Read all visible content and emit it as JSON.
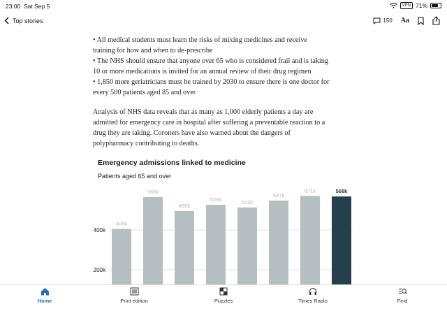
{
  "status_bar": {
    "time": "23:00",
    "date": "Sat Sep 5",
    "vpn": "VPN",
    "battery": "71%",
    "battery_level": 0.71
  },
  "nav": {
    "back_label": "Top stories",
    "comment_count": "150",
    "font_label": "Aa"
  },
  "article": {
    "bullets": [
      "• All medical students must learn the risks of mixing medicines and receive",
      "training for how and when to de-prescribe",
      "• The NHS should ensure that anyone over 65 who is considered frail and is taking",
      "10 or more medications is invited for an annual review of their drug regimen",
      "• 1,850 more geriatricians must be trained by 2030 to ensure there is one doctor for",
      "every 500 patients aged 85 and over"
    ],
    "paragraph_lines": [
      "Analysis of NHS data reveals that as many as 1,000 elderly patients a day are",
      "admitted for emergency care in hospital after suffering a preventable reaction to a",
      "drug they are taking. Coroners have also warned about the dangers of",
      "polypharmacy contributing to deaths."
    ]
  },
  "chart_data": {
    "type": "bar",
    "title": "Emergency admissions linked to medicine",
    "subtitle": "Patients aged 65 and over",
    "values": [
      405,
      565,
      495,
      526,
      513,
      547,
      571,
      568
    ],
    "value_labels": [
      "405k",
      "565k",
      "495k",
      "526k",
      "513k",
      "547k",
      "571k",
      "568k"
    ],
    "highlight_index": 7,
    "y_ticks": [
      200,
      400
    ],
    "y_tick_labels": [
      "200k",
      "400k"
    ],
    "colors": {
      "bar": "#b6bec2",
      "highlight": "#263f4c",
      "label": "#b0b6ba",
      "highlight_label": "#333333"
    }
  },
  "tabs": [
    {
      "label": "Home",
      "icon": "home-icon",
      "active": true
    },
    {
      "label": "Print edition",
      "icon": "newspaper-icon",
      "active": false
    },
    {
      "label": "Puzzles",
      "icon": "puzzle-icon",
      "active": false
    },
    {
      "label": "Times Radio",
      "icon": "headphones-icon",
      "active": false
    },
    {
      "label": "Find",
      "icon": "find-icon",
      "active": false
    }
  ]
}
